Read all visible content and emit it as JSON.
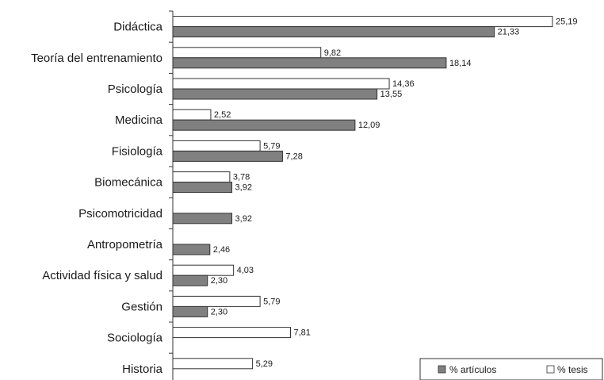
{
  "chart_data": {
    "type": "bar",
    "orientation": "horizontal",
    "title": "",
    "xlabel": "",
    "ylabel": "",
    "categories": [
      "Didáctica",
      "Teoría del entrenamiento",
      "Psicología",
      "Medicina",
      "Fisiología",
      "Biomecánica",
      "Psicomotricidad",
      "Antropometría",
      "Actividad física y salud",
      "Gestión",
      "Sociología",
      "Historia"
    ],
    "series": [
      {
        "name": "% tesis",
        "color": "#ffffff",
        "values": [
          25.19,
          9.82,
          14.36,
          2.52,
          5.79,
          3.78,
          null,
          null,
          4.03,
          5.79,
          7.81,
          5.29
        ],
        "labels": [
          "25,19",
          "9,82",
          "14,36",
          "2,52",
          "5,79",
          "3,78",
          "",
          "",
          "4,03",
          "5,79",
          "7,81",
          "5,29"
        ]
      },
      {
        "name": "% artículos",
        "color": "#808080",
        "values": [
          21.33,
          18.14,
          13.55,
          12.09,
          7.28,
          3.92,
          3.92,
          2.46,
          2.3,
          2.3,
          null,
          null
        ],
        "labels": [
          "21,33",
          "18,14",
          "13,55",
          "12,09",
          "7,28",
          "3,92",
          "3,92",
          "2,46",
          "2,30",
          "2,30",
          "",
          ""
        ]
      }
    ],
    "legend": {
      "position": "bottom-right",
      "items": [
        "% artículos",
        "% tesis"
      ]
    },
    "grid": false
  }
}
